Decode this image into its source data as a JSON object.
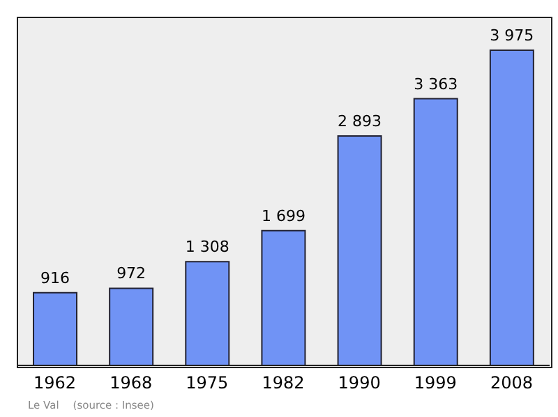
{
  "chart_data": {
    "type": "bar",
    "categories": [
      "1962",
      "1968",
      "1975",
      "1982",
      "1990",
      "1999",
      "2008"
    ],
    "values": [
      916,
      972,
      1308,
      1699,
      2893,
      3363,
      3975
    ],
    "value_labels": [
      "916",
      "972",
      "1 308",
      "1 699",
      "2 893",
      "3 363",
      "3 975"
    ],
    "color": "#7093f5",
    "annotations": [
      "Le Val",
      "(source : Insee)"
    ],
    "grid": false
  }
}
